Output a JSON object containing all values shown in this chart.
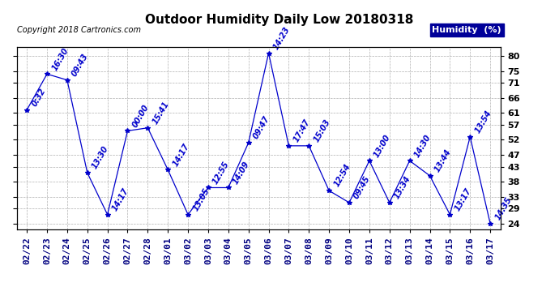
{
  "title": "Outdoor Humidity Daily Low 20180318",
  "copyright": "Copyright 2018 Cartronics.com",
  "legend_label": "Humidity  (%)",
  "dates": [
    "02/22",
    "02/23",
    "02/24",
    "02/25",
    "02/26",
    "02/27",
    "02/28",
    "03/01",
    "03/02",
    "03/03",
    "03/04",
    "03/05",
    "03/06",
    "03/07",
    "03/08",
    "03/09",
    "03/10",
    "03/11",
    "03/12",
    "03/13",
    "03/14",
    "03/15",
    "03/16",
    "03/17"
  ],
  "values": [
    62,
    74,
    72,
    41,
    27,
    55,
    56,
    42,
    27,
    36,
    36,
    51,
    81,
    50,
    50,
    35,
    31,
    45,
    31,
    45,
    40,
    27,
    53,
    24
  ],
  "times": [
    "0:32",
    "16:30",
    "09:43",
    "13:30",
    "14:17",
    "00:00",
    "15:41",
    "14:17",
    "13:05",
    "12:55",
    "14:09",
    "09:47",
    "14:23",
    "17:47",
    "15:03",
    "12:54",
    "09:45",
    "13:00",
    "13:34",
    "14:30",
    "13:44",
    "13:17",
    "13:54",
    "14:35"
  ],
  "yticks": [
    24,
    29,
    33,
    38,
    43,
    47,
    52,
    57,
    61,
    66,
    71,
    75,
    80
  ],
  "ymin": 22,
  "ymax": 83,
  "line_color": "#0000cc",
  "marker_color": "#0000cc",
  "grid_color": "#b0b0b0",
  "bg_color": "#ffffff",
  "title_fontsize": 11,
  "tick_fontsize": 8,
  "annotation_fontsize": 7,
  "legend_bg": "#000099",
  "legend_fg": "#ffffff",
  "copyright_fontsize": 7,
  "legend_fontsize": 8
}
